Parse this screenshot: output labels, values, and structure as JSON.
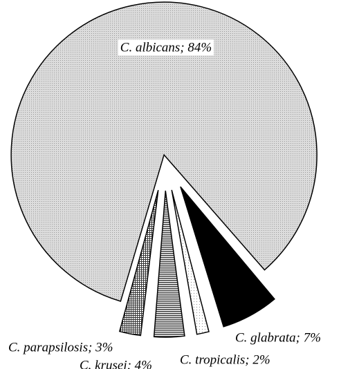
{
  "chart_data": {
    "type": "pie",
    "values": [
      84,
      7,
      2,
      4,
      3
    ],
    "value_labels": [
      "C. albicans; 84%",
      "C. glabrata; 7%",
      "C. tropicalis; 2%",
      "C. krusei; 4%",
      "C. parapsilosis; 3%"
    ],
    "colors": [
      "#d2d2d2",
      "#000000",
      "#f0f0f0",
      "#8a8a8a",
      "#b0b0b0"
    ]
  }
}
